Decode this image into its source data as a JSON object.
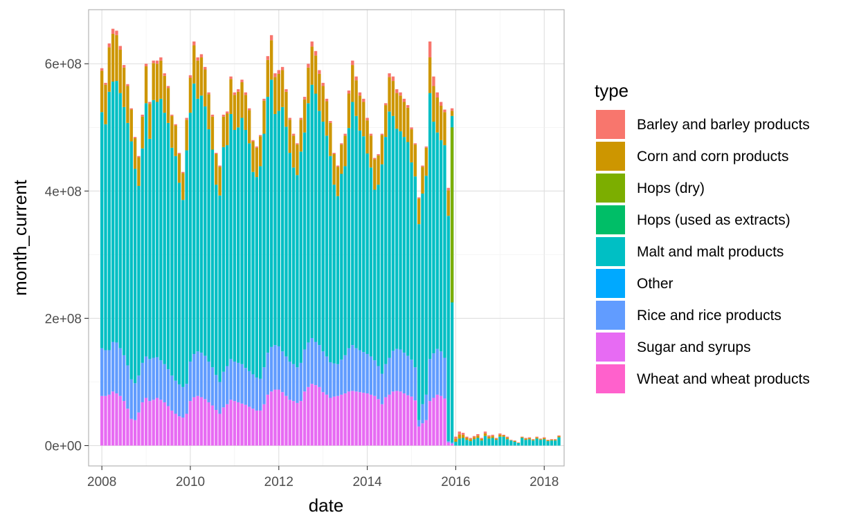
{
  "chart_data": {
    "type": "bar",
    "stacked": true,
    "xlabel": "date",
    "ylabel": "month_current",
    "legend_title": "type",
    "legend_position": "right",
    "grid": true,
    "xlim": [
      2007.7,
      2018.45
    ],
    "ylim": [
      -32000000,
      685000000
    ],
    "x_ticks": [
      2008,
      2010,
      2012,
      2014,
      2016,
      2018
    ],
    "x_tick_labels": [
      "2008",
      "2010",
      "2012",
      "2014",
      "2016",
      "2018"
    ],
    "y_ticks": [
      0,
      200000000,
      400000000,
      600000000
    ],
    "y_tick_labels": [
      "0e+00",
      "2e+08",
      "4e+08",
      "6e+08"
    ],
    "stack_order": [
      "Wheat and wheat products",
      "Sugar and syrups",
      "Rice and rice products",
      "Other",
      "Malt and malt products",
      "Hops (used as extracts)",
      "Hops (dry)",
      "Corn and corn products",
      "Barley and barley products"
    ],
    "legend": [
      {
        "name": "Barley and barley products",
        "color": "#F8766D"
      },
      {
        "name": "Corn and corn products",
        "color": "#CD9600"
      },
      {
        "name": "Hops (dry)",
        "color": "#7CAE00"
      },
      {
        "name": "Hops (used as extracts)",
        "color": "#00BE67"
      },
      {
        "name": "Malt and malt products",
        "color": "#00BFC4"
      },
      {
        "name": "Other",
        "color": "#00A9FF"
      },
      {
        "name": "Rice and rice products",
        "color": "#619CFF"
      },
      {
        "name": "Sugar and syrups",
        "color": "#E76BF3"
      },
      {
        "name": "Wheat and wheat products",
        "color": "#FF61CC"
      }
    ],
    "series_values_note": "",
    "series_order_bars": [
      "Sugar and syrups",
      "Rice and rice products",
      "Malt and malt products",
      "Corn and corn products",
      "Barley and barley products"
    ],
    "phase1_start": "2008-01",
    "phase1_totals": [
      593,
      570,
      632,
      655,
      652,
      628,
      598,
      568,
      530,
      485,
      455,
      520,
      600,
      540,
      605,
      605,
      610,
      585,
      565,
      520,
      505,
      460,
      430,
      515,
      582,
      635,
      610,
      615,
      595,
      555,
      520,
      460,
      440,
      520,
      525,
      580,
      555,
      560,
      575,
      555,
      530,
      480,
      470,
      488,
      545,
      612,
      645,
      585,
      590,
      595,
      560,
      515,
      490,
      475,
      515,
      548,
      600,
      635,
      620,
      590,
      570,
      545,
      510,
      460,
      440,
      475,
      490,
      558,
      605,
      580,
      555,
      545,
      515,
      490,
      452,
      458,
      490,
      538,
      585,
      580,
      560,
      555,
      545,
      535,
      500,
      475,
      390,
      440,
      470,
      635,
      580,
      555,
      540,
      528,
      405,
      530
    ],
    "phase1_sugar": [
      78,
      78,
      80,
      85,
      82,
      78,
      70,
      58,
      42,
      40,
      52,
      68,
      75,
      70,
      72,
      75,
      72,
      68,
      62,
      55,
      50,
      46,
      44,
      50,
      70,
      76,
      78,
      76,
      73,
      68,
      63,
      56,
      50,
      60,
      65,
      72,
      70,
      68,
      66,
      64,
      61,
      58,
      55,
      55,
      65,
      80,
      85,
      88,
      88,
      84,
      78,
      72,
      70,
      67,
      70,
      85,
      92,
      97,
      95,
      92,
      84,
      80,
      75,
      77,
      78,
      80,
      82,
      85,
      86,
      85,
      84,
      83,
      82,
      80,
      78,
      73,
      65,
      76,
      80,
      85,
      86,
      85,
      82,
      79,
      77,
      71,
      30,
      35,
      40,
      70,
      75,
      80,
      78,
      74,
      5,
      3
    ],
    "phase1_rice": [
      75,
      72,
      70,
      78,
      80,
      75,
      72,
      68,
      62,
      58,
      58,
      62,
      65,
      66,
      66,
      64,
      62,
      60,
      58,
      55,
      52,
      50,
      48,
      47,
      62,
      68,
      70,
      70,
      68,
      64,
      60,
      55,
      50,
      56,
      60,
      64,
      62,
      62,
      62,
      58,
      56,
      54,
      52,
      50,
      58,
      66,
      70,
      70,
      68,
      64,
      62,
      60,
      58,
      56,
      60,
      66,
      70,
      72,
      68,
      66,
      64,
      60,
      56,
      52,
      50,
      55,
      60,
      68,
      72,
      68,
      66,
      64,
      62,
      60,
      56,
      52,
      48,
      52,
      58,
      64,
      66,
      66,
      64,
      62,
      58,
      52,
      10,
      30,
      40,
      66,
      70,
      72,
      70,
      64,
      2,
      2
    ],
    "phase1_corn": [
      65,
      62,
      70,
      75,
      72,
      68,
      62,
      58,
      50,
      48,
      45,
      50,
      58,
      55,
      58,
      60,
      60,
      58,
      55,
      50,
      48,
      45,
      42,
      48,
      55,
      60,
      60,
      60,
      58,
      55,
      52,
      48,
      45,
      48,
      50,
      55,
      55,
      56,
      56,
      55,
      52,
      48,
      46,
      47,
      52,
      58,
      62,
      58,
      58,
      58,
      55,
      52,
      50,
      48,
      50,
      52,
      56,
      60,
      60,
      58,
      56,
      54,
      52,
      48,
      46,
      46,
      48,
      54,
      58,
      56,
      55,
      54,
      52,
      50,
      48,
      46,
      46,
      50,
      54,
      55,
      56,
      56,
      55,
      54,
      52,
      50,
      40,
      42,
      44,
      56,
      56,
      55,
      54,
      52,
      40,
      8
    ],
    "phase1_barley": [
      4,
      3,
      6,
      8,
      7,
      6,
      4,
      3,
      2,
      2,
      2,
      3,
      4,
      3,
      4,
      5,
      5,
      4,
      3,
      2,
      2,
      2,
      2,
      3,
      4,
      6,
      5,
      5,
      4,
      3,
      3,
      2,
      2,
      3,
      3,
      4,
      4,
      4,
      4,
      4,
      3,
      2,
      2,
      2,
      3,
      6,
      8,
      6,
      6,
      5,
      4,
      3,
      3,
      2,
      3,
      4,
      6,
      8,
      7,
      6,
      5,
      4,
      3,
      2,
      2,
      2,
      3,
      5,
      7,
      6,
      5,
      5,
      4,
      3,
      2,
      2,
      2,
      3,
      6,
      7,
      6,
      5,
      5,
      4,
      3,
      2,
      2,
      2,
      2,
      25,
      15,
      8,
      6,
      4,
      4,
      4
    ],
    "phase1_last_hops": [
      {
        "month": "2015-12",
        "hops_dry_top": 500,
        "hops_dry_bottom": 225
      }
    ],
    "phase2_start": "2016-01",
    "phase2_totals": [
      14,
      22,
      20,
      14,
      12,
      15,
      18,
      12,
      22,
      16,
      17,
      12,
      19,
      17,
      14,
      9,
      8,
      5,
      14,
      12,
      13,
      10,
      14,
      11,
      13,
      9,
      10,
      10,
      16
    ],
    "phase2_tops": [
      8,
      11,
      8,
      5,
      5,
      5,
      6,
      4,
      7,
      5,
      5,
      3,
      5,
      3,
      4,
      1,
      2,
      1,
      2,
      3,
      3,
      2,
      3,
      2,
      3,
      2,
      2,
      2,
      3
    ],
    "units_multiplier": 1000000
  }
}
